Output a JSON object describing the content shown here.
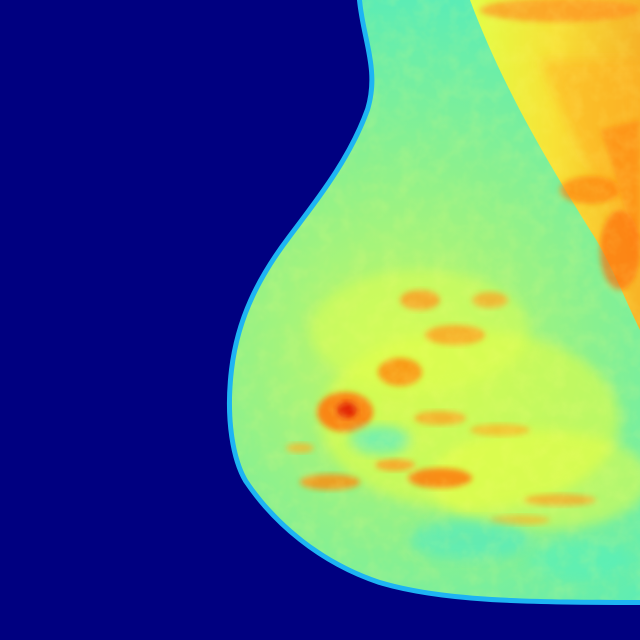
{
  "image": {
    "kind": "mammogram-mlo-view",
    "colormap": "jet",
    "colors": {
      "background": "#000080",
      "tissue_low": "#38f0d0",
      "tissue_mid": "#d8ff40",
      "tissue_high": "#ffd200",
      "dense_spot": "#ff5a10",
      "peak_spot": "#e01800",
      "skin_edge": "#20c8ff"
    }
  }
}
